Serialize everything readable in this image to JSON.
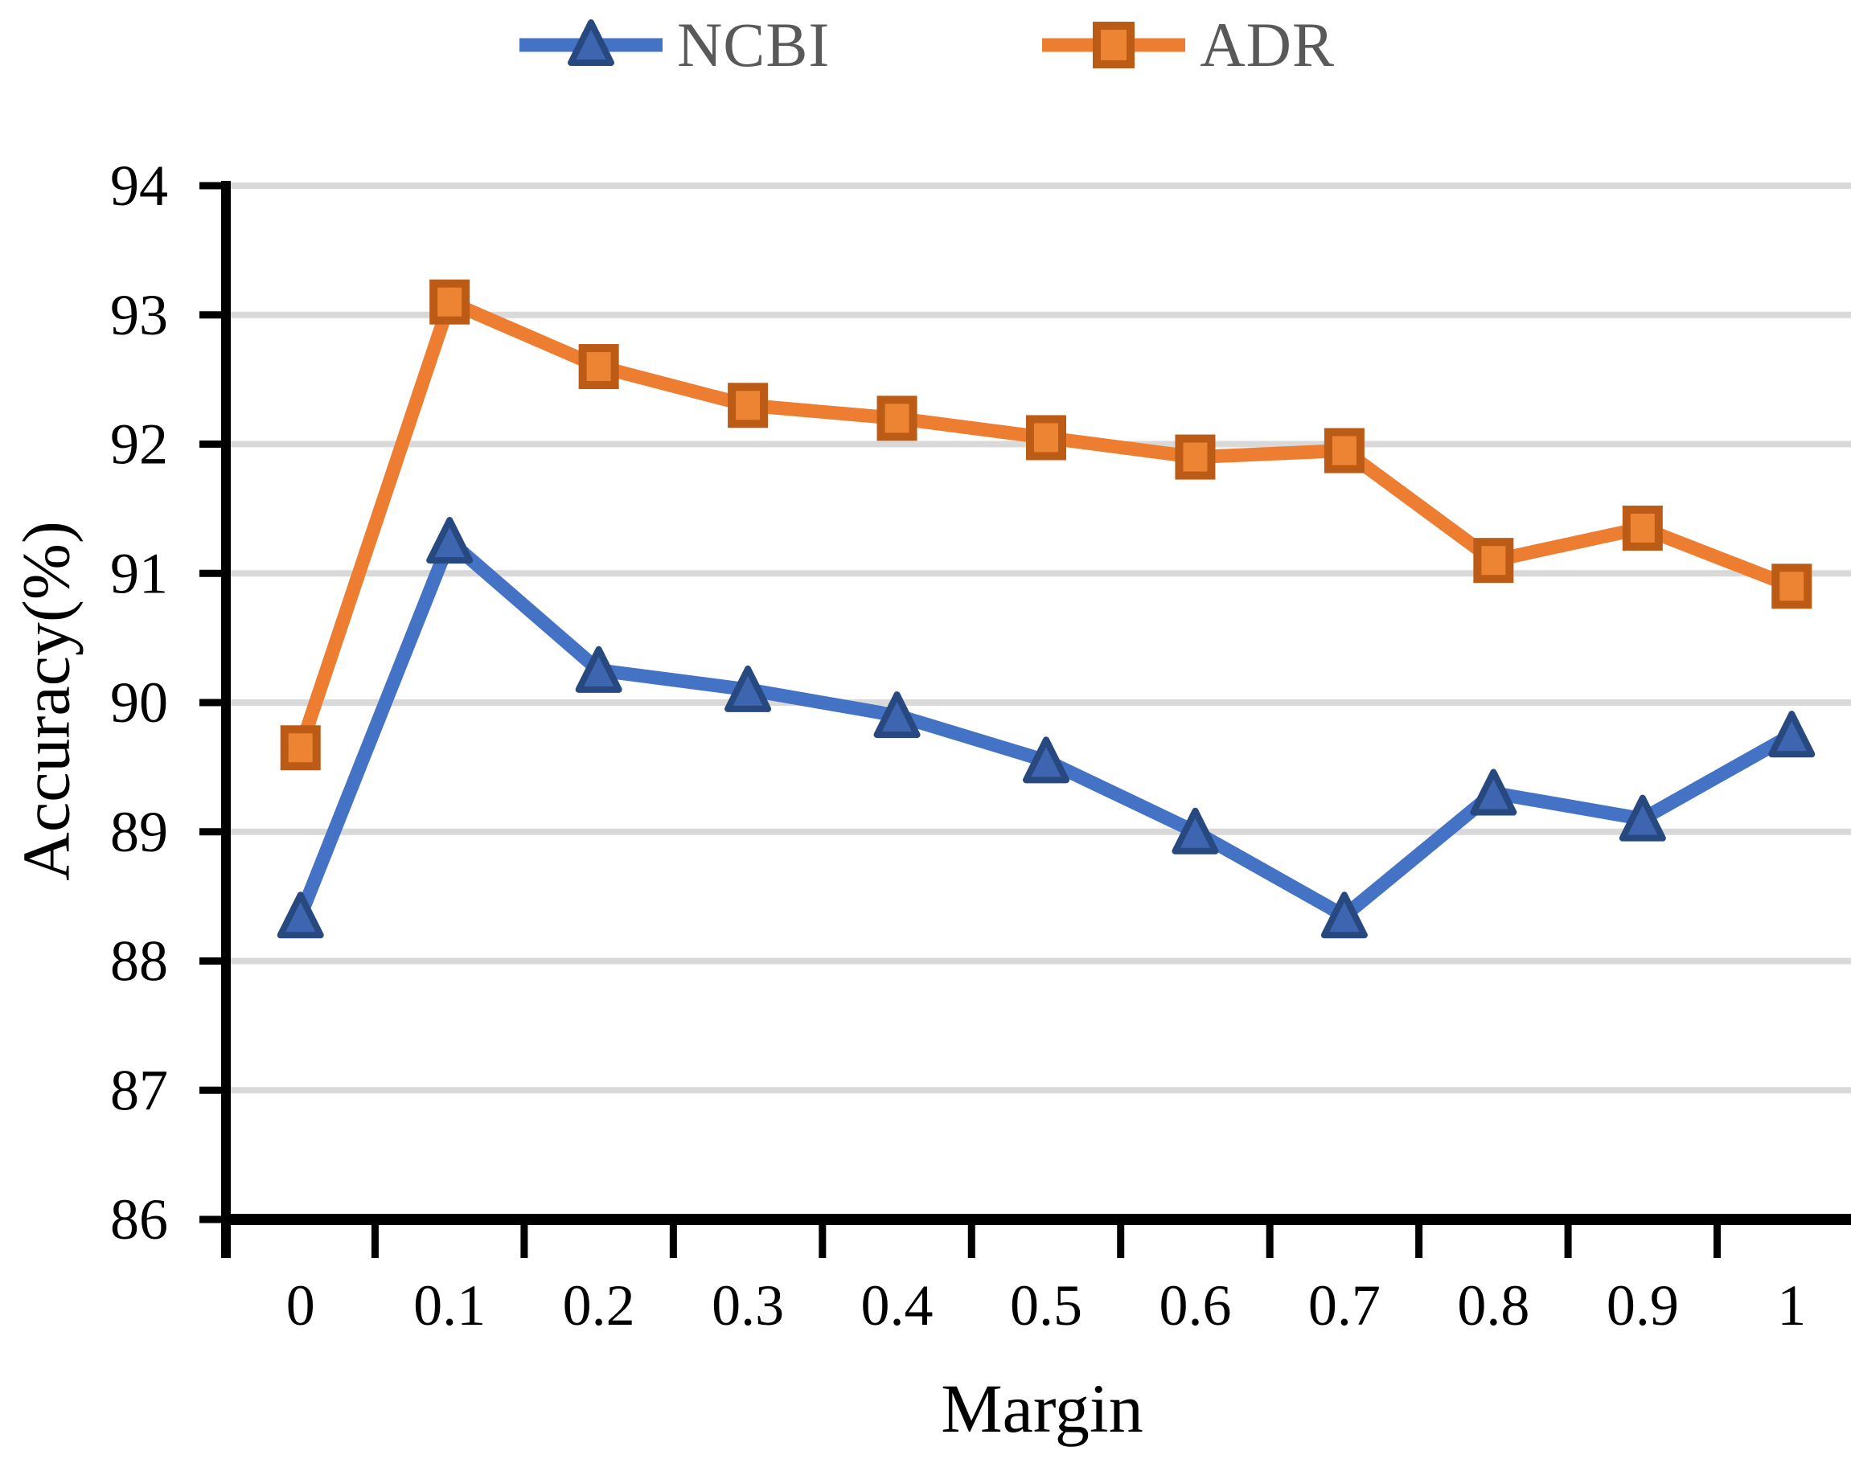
{
  "chart_data": {
    "type": "line",
    "title": "",
    "xlabel": "Margin",
    "ylabel": "Accuracy(%)",
    "categories": [
      0,
      0.1,
      0.2,
      0.3,
      0.4,
      0.5,
      0.6,
      0.7,
      0.8,
      0.9,
      1
    ],
    "x_tick_labels": [
      "0",
      "0.1",
      "0.2",
      "0.3",
      "0.4",
      "0.5",
      "0.6",
      "0.7",
      "0.8",
      "0.9",
      "1"
    ],
    "y_tick_labels": [
      "86",
      "87",
      "88",
      "89",
      "90",
      "91",
      "92",
      "93",
      "94"
    ],
    "y_ticks": [
      86,
      87,
      88,
      89,
      90,
      91,
      92,
      93,
      94
    ],
    "ylim": [
      86,
      94
    ],
    "grid": "horizontal-only",
    "legend_position": "top-center",
    "series": [
      {
        "name": "NCBI",
        "marker": "triangle",
        "line_color": "#4472C4",
        "marker_fill": "#3E66B0",
        "marker_border": "#27497F",
        "values": [
          88.35,
          91.25,
          90.25,
          90.1,
          89.9,
          89.55,
          89.0,
          88.35,
          89.3,
          89.1,
          89.75
        ]
      },
      {
        "name": "ADR",
        "marker": "square",
        "line_color": "#ED7D31",
        "marker_fill": "#EC8434",
        "marker_border": "#BC5B15",
        "values": [
          89.65,
          93.1,
          92.6,
          92.3,
          92.2,
          92.05,
          91.9,
          91.95,
          91.1,
          91.35,
          90.9
        ]
      }
    ],
    "gridline_color": "#D9D9D9",
    "axis_color": "#000000",
    "tick_label_color": "#000000",
    "legend_text_color": "#595959"
  }
}
